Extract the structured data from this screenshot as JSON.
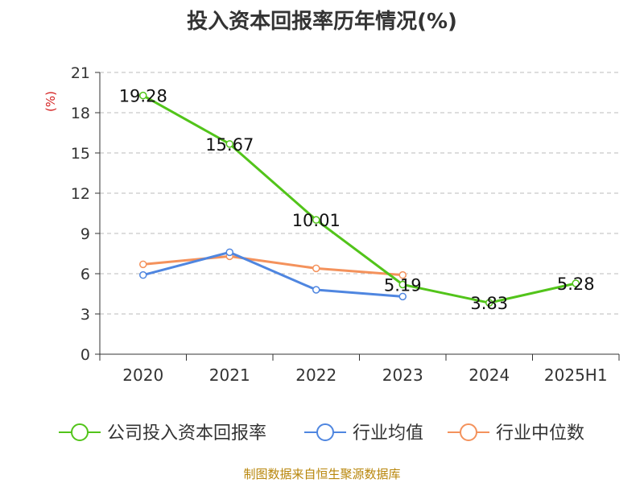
{
  "page": {
    "title": "投入资本回报率历年情况(%)",
    "source": "制图数据来自恒生聚源数据库"
  },
  "chart_data": {
    "type": "line",
    "title": "投入资本回报率历年情况(%)",
    "ylabel": "(%)",
    "xlabel": "",
    "categories": [
      "2020",
      "2021",
      "2022",
      "2023",
      "2024",
      "2025H1"
    ],
    "ylim": [
      0,
      21
    ],
    "yticks": [
      0,
      3,
      6,
      9,
      12,
      15,
      18,
      21
    ],
    "grid": true,
    "legend_position": "bottom",
    "series": [
      {
        "name": "公司投入资本回报率",
        "color": "#52c41a",
        "values": [
          19.28,
          15.67,
          10.01,
          5.19,
          3.83,
          5.28
        ],
        "labels": true
      },
      {
        "name": "行业均值",
        "color": "#4f86e0",
        "values": [
          5.9,
          7.6,
          4.8,
          4.3,
          null,
          null
        ],
        "labels": false
      },
      {
        "name": "行业中位数",
        "color": "#f4925c",
        "values": [
          6.7,
          7.3,
          6.4,
          5.9,
          null,
          null
        ],
        "labels": false
      }
    ]
  }
}
